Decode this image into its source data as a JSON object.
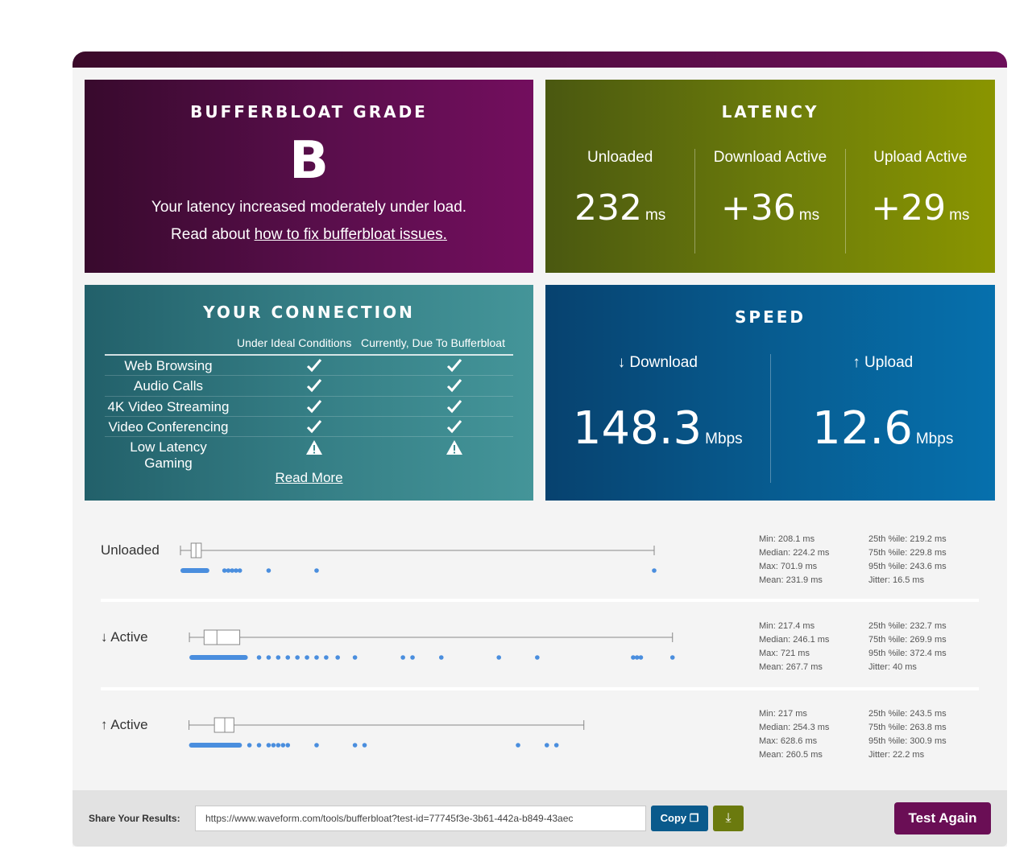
{
  "grade": {
    "title": "BUFFERBLOAT GRADE",
    "letter": "B",
    "description": "Your latency increased moderately under load.",
    "read_prefix": "Read about ",
    "read_link": "how to fix bufferbloat issues."
  },
  "latency": {
    "title": "LATENCY",
    "cols": [
      {
        "label": "Unloaded",
        "value": "232",
        "unit": "ms"
      },
      {
        "label": "Download Active",
        "value": "+36",
        "unit": "ms"
      },
      {
        "label": "Upload Active",
        "value": "+29",
        "unit": "ms"
      }
    ]
  },
  "connection": {
    "title": "YOUR CONNECTION",
    "col_ideal": "Under Ideal Conditions",
    "col_current": "Currently, Due To Bufferbloat",
    "rows": [
      {
        "name": "Web Browsing",
        "ideal": "check",
        "current": "check"
      },
      {
        "name": "Audio Calls",
        "ideal": "check",
        "current": "check"
      },
      {
        "name": "4K Video Streaming",
        "ideal": "check",
        "current": "check"
      },
      {
        "name": "Video Conferencing",
        "ideal": "check",
        "current": "check"
      },
      {
        "name": "Low Latency Gaming",
        "ideal": "warning",
        "current": "warning"
      }
    ],
    "read_more": "Read More"
  },
  "speed": {
    "title": "SPEED",
    "download": {
      "label": "↓ Download",
      "value": "148.3",
      "unit": "Mbps"
    },
    "upload": {
      "label": "↑ Upload",
      "value": "12.6",
      "unit": "Mbps"
    }
  },
  "distribution": [
    {
      "title": "Unloaded",
      "min": 208.1,
      "q1": 219.2,
      "median": 224.2,
      "q3": 229.8,
      "max": 701.9,
      "outliers": [
        254,
        258,
        262,
        266,
        270,
        300,
        350,
        701.9
      ],
      "stats_left": [
        "Min: 208.1 ms",
        "Median: 224.2 ms",
        "Max: 701.9 ms",
        "Mean: 231.9 ms"
      ],
      "stats_right": [
        "25th %ile: 219.2 ms",
        "75th %ile: 229.8 ms",
        "95th %ile: 243.6 ms",
        "Jitter: 16.5 ms"
      ]
    },
    {
      "title": "↓ Active",
      "min": 217.4,
      "q1": 232.7,
      "median": 246.1,
      "q3": 269.9,
      "max": 721,
      "outliers": [
        290,
        300,
        310,
        320,
        330,
        340,
        350,
        360,
        372,
        390,
        440,
        450,
        480,
        540,
        580,
        680,
        684,
        688,
        721
      ],
      "stats_left": [
        "Min: 217.4 ms",
        "Median: 246.1 ms",
        "Max: 721 ms",
        "Mean: 267.7 ms"
      ],
      "stats_right": [
        "25th %ile: 232.7 ms",
        "75th %ile: 269.9 ms",
        "95th %ile: 372.4 ms",
        "Jitter: 40 ms"
      ]
    },
    {
      "title": "↑ Active",
      "min": 217,
      "q1": 243.5,
      "median": 254.3,
      "q3": 263.8,
      "max": 628.6,
      "outliers": [
        280,
        290,
        300,
        305,
        310,
        315,
        320,
        350,
        390,
        400,
        560,
        590,
        600
      ],
      "stats_left": [
        "Min: 217 ms",
        "Median: 254.3 ms",
        "Max: 628.6 ms",
        "Mean: 260.5 ms"
      ],
      "stats_right": [
        "25th %ile: 243.5 ms",
        "75th %ile: 263.8 ms",
        "95th %ile: 300.9 ms",
        "Jitter: 22.2 ms"
      ]
    }
  ],
  "share": {
    "label": "Share Your Results:",
    "url": "https://www.waveform.com/tools/bufferbloat?test-id=77745f3e-3b61-442a-b849-43aec",
    "copy": "Copy",
    "test_again": "Test Again"
  },
  "colors": {
    "dot": "#4a8ede"
  }
}
